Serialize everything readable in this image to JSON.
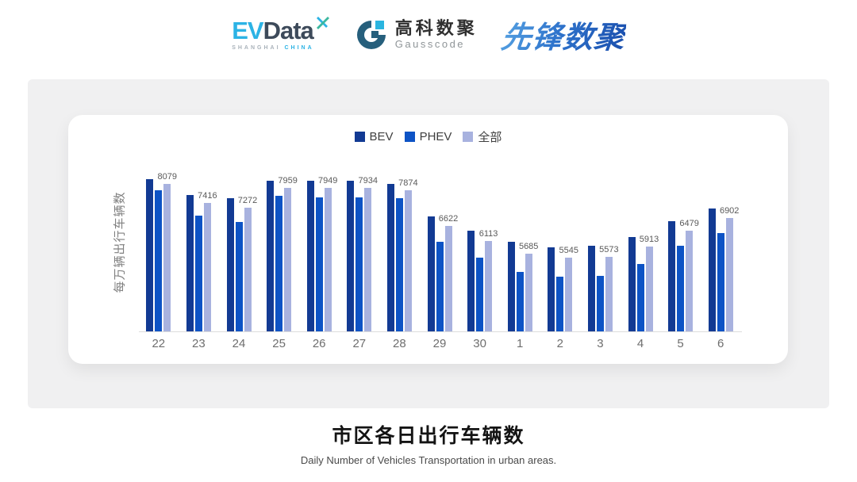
{
  "header": {
    "evdata": {
      "ev": "EV",
      "data": "Data",
      "sub_left": "SHANGHAI",
      "sub_right": "CHINA"
    },
    "gausscode": {
      "cn": "高科数聚",
      "en": "Gausscode"
    },
    "pioneer": {
      "text": "先锋数聚"
    }
  },
  "colors": {
    "bev": "#123a93",
    "phev": "#0d53c5",
    "all": "#a8b2df",
    "evdata_blue": "#2cb3e5",
    "evdata_slate": "#3d4a5a",
    "gauss_dark": "#265f7c",
    "gauss_cyan": "#2ab5e0"
  },
  "chart_data": {
    "type": "bar",
    "title": "市区各日出行车辆数",
    "subtitle": "Daily Number of Vehicles Transportation in urban areas.",
    "ylabel": "每万辆出行车辆数",
    "xlabel": "",
    "categories": [
      "22",
      "23",
      "24",
      "25",
      "26",
      "27",
      "28",
      "29",
      "30",
      "1",
      "2",
      "3",
      "4",
      "5",
      "6"
    ],
    "series": [
      {
        "name": "BEV",
        "color": "#123a93",
        "values": [
          8240,
          7700,
          7590,
          8200,
          8180,
          8180,
          8090,
          6970,
          6470,
          6080,
          5900,
          5940,
          6240,
          6790,
          7240
        ]
      },
      {
        "name": "PHEV",
        "color": "#0d53c5",
        "values": [
          7850,
          6990,
          6780,
          7680,
          7630,
          7610,
          7590,
          6100,
          5540,
          5050,
          4890,
          4910,
          5330,
          5940,
          6380
        ]
      },
      {
        "name": "全部",
        "color": "#a8b2df",
        "data_labels": true,
        "values": [
          8079,
          7416,
          7272,
          7959,
          7949,
          7934,
          7874,
          6622,
          6113,
          5685,
          5545,
          5573,
          5913,
          6479,
          6902
        ]
      }
    ],
    "data_label_series": "全部",
    "ylim": [
      3000,
      8450
    ],
    "grid": false,
    "legend_position": "top"
  }
}
